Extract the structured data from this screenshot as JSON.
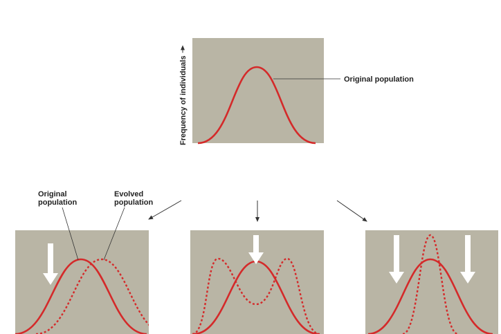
{
  "top_panel": {
    "y_axis_label": "Frequency of individuals",
    "curve_label": "Original population"
  },
  "bottom_left": {
    "original_label": [
      "Original",
      "population"
    ],
    "evolved_label": [
      "Evolved",
      "population"
    ]
  }
}
